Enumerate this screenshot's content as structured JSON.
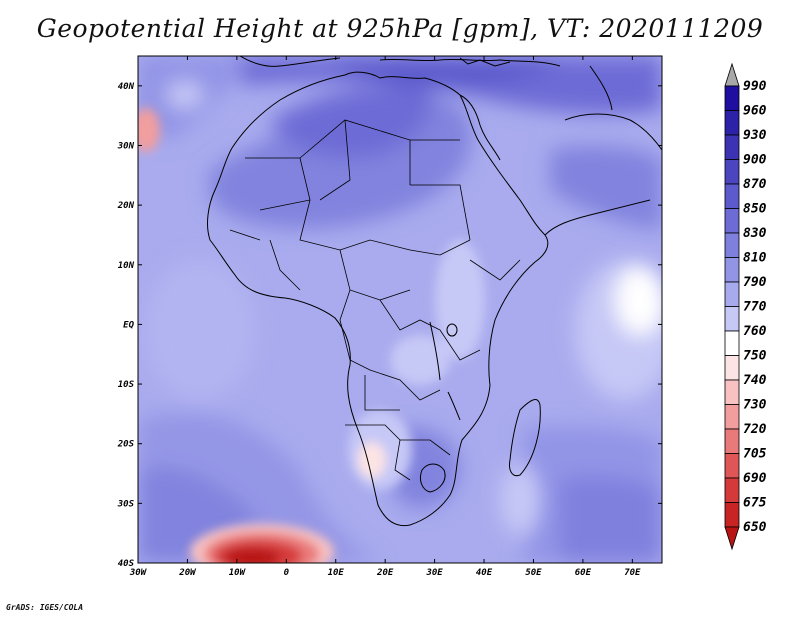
{
  "title": "Geopotential Height at 925hPa [gpm], VT: 2020111209",
  "credit": "GrADS: IGES/COLA",
  "map": {
    "lat_labels": [
      "40N",
      "30N",
      "20N",
      "10N",
      "EQ",
      "10S",
      "20S",
      "30S",
      "40S"
    ],
    "lon_labels": [
      "30W",
      "20W",
      "10W",
      "0",
      "10E",
      "20E",
      "30E",
      "40E",
      "50E",
      "60E",
      "70E"
    ],
    "lat_range": [
      -40,
      45
    ],
    "lon_range": [
      -30,
      76
    ]
  },
  "colorbar": {
    "levels": [
      "990",
      "960",
      "930",
      "900",
      "870",
      "850",
      "830",
      "810",
      "790",
      "770",
      "760",
      "750",
      "740",
      "730",
      "720",
      "705",
      "690",
      "675",
      "650"
    ],
    "colors": [
      "#1f0fa0",
      "#2c22a8",
      "#3b33b4",
      "#4b46c0",
      "#5c5acc",
      "#6d6cd6",
      "#7f80de",
      "#9294e6",
      "#a8aaee",
      "#c6c8f6",
      "#ffffff",
      "#fde4e4",
      "#f8c2c2",
      "#f29e9e",
      "#ea7a7a",
      "#e05656",
      "#d53a3a",
      "#c82424",
      "#b81414"
    ],
    "top_color": "#a9a9a9",
    "bottom_color": "#b81414"
  }
}
